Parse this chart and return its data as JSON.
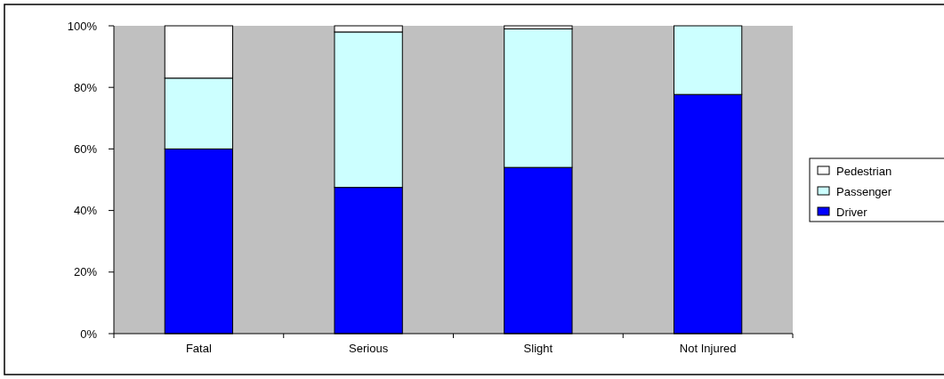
{
  "chart_data": {
    "type": "bar",
    "stacked": true,
    "categories": [
      "Fatal",
      "Serious",
      "Slight",
      "Not Injured"
    ],
    "series": [
      {
        "name": "Driver",
        "color": "#0000ff",
        "values": [
          60,
          47.5,
          54,
          77.7
        ]
      },
      {
        "name": "Passenger",
        "color": "#ccffff",
        "values": [
          23,
          50.5,
          45,
          22.3
        ]
      },
      {
        "name": "Pedestrian",
        "color": "#ffffff",
        "values": [
          17,
          2,
          1,
          0
        ]
      }
    ],
    "ylim": [
      0,
      100
    ],
    "yticks": [
      {
        "value": 0,
        "label": "0%"
      },
      {
        "value": 20,
        "label": "20%"
      },
      {
        "value": 40,
        "label": "40%"
      },
      {
        "value": 60,
        "label": "60%"
      },
      {
        "value": 80,
        "label": "80%"
      },
      {
        "value": 100,
        "label": "100%"
      }
    ],
    "grid": false,
    "legend": "right"
  }
}
